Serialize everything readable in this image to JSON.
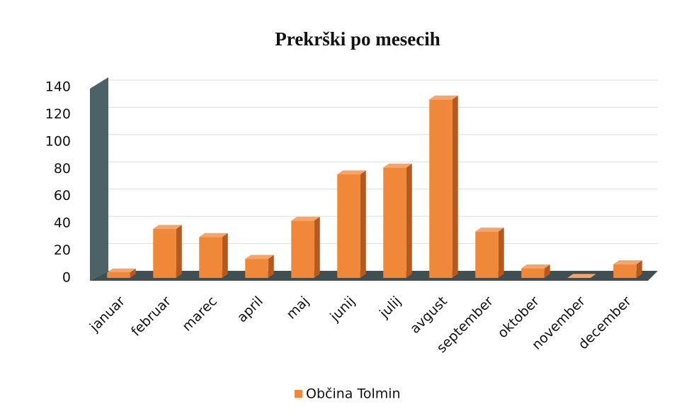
{
  "chart_data": {
    "type": "bar",
    "title": "Prekrški po mesecih",
    "categories": [
      "januar",
      "februar",
      "marec",
      "april",
      "maj",
      "junij",
      "julij",
      "avgust",
      "september",
      "oktober",
      "november",
      "december"
    ],
    "series": [
      {
        "name": "Občina Tolmin",
        "color": "#f0883a",
        "values": [
          4,
          36,
          30,
          14,
          42,
          76,
          81,
          131,
          34,
          7,
          0,
          10
        ]
      }
    ],
    "ylim": [
      0,
      140
    ],
    "yticks": [
      0,
      20,
      40,
      60,
      80,
      100,
      120,
      140
    ],
    "grid": true,
    "legend": "bottom"
  }
}
